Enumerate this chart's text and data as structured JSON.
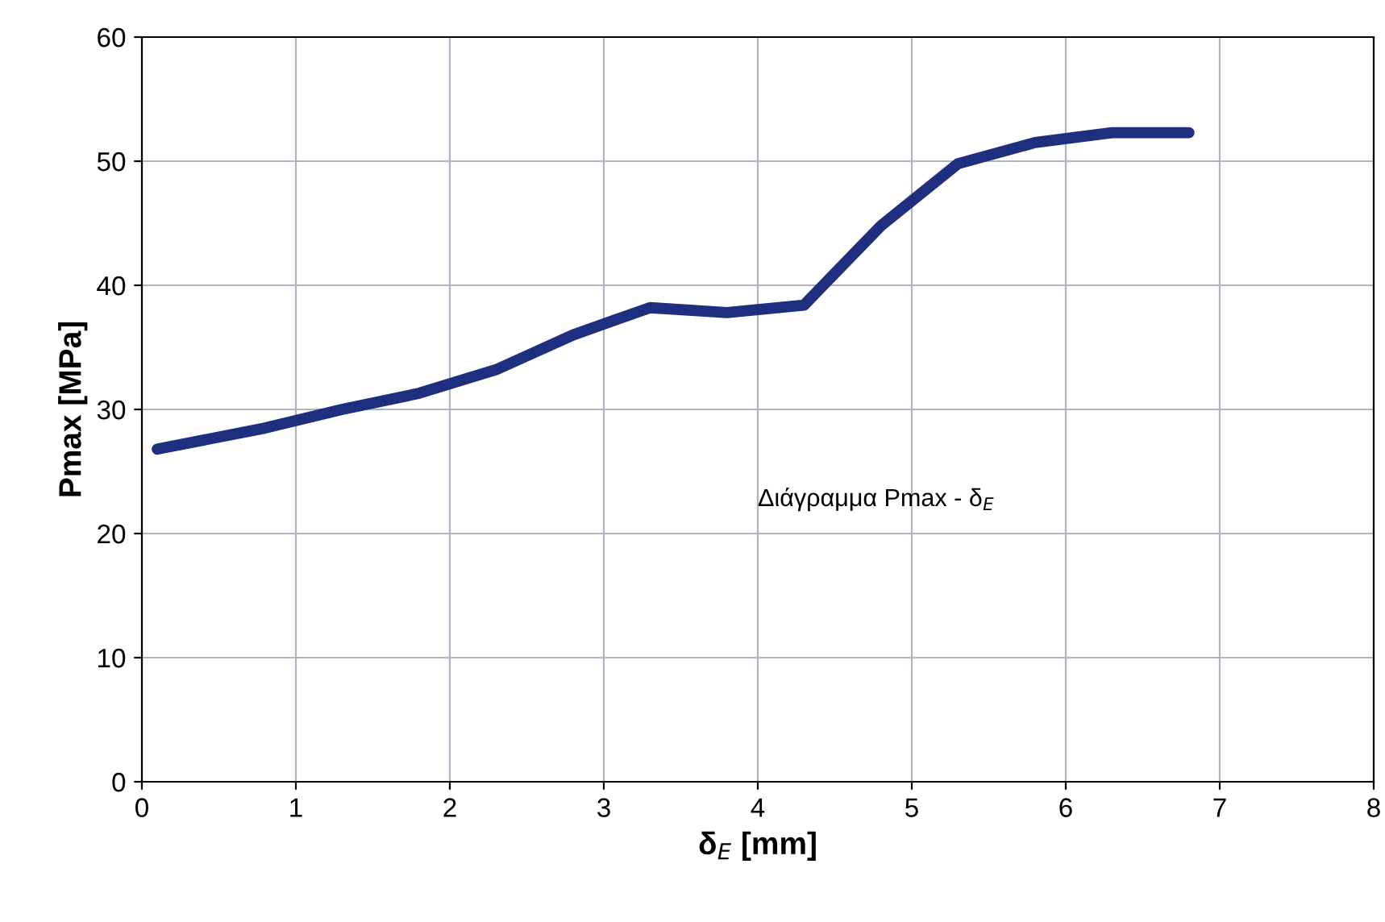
{
  "chart_data": {
    "type": "line",
    "xlabel": "δ$_{E}$ [mm]",
    "ylabel": "Pmax [MPa]",
    "annotations": [
      "Διάγραμμα Pmax - δ$_{E}$"
    ],
    "x": [
      0.1,
      0.8,
      1.3,
      1.8,
      2.3,
      2.8,
      3.3,
      3.8,
      4.3,
      4.8,
      5.3,
      5.8,
      6.3,
      6.8
    ],
    "series": [
      {
        "color": "#1f2f80",
        "values": [
          26.8,
          28.5,
          30,
          31.3,
          33.2,
          36,
          38.2,
          37.8,
          38.4,
          44.8,
          49.8,
          51.5,
          52.3,
          52.3
        ]
      }
    ],
    "xlim": [
      0,
      8
    ],
    "xticks": [
      0,
      1,
      2,
      3,
      4,
      5,
      6,
      7,
      8
    ],
    "ylim": [
      0,
      60
    ],
    "yticks": [
      0,
      10,
      20,
      30,
      40,
      50,
      60
    ],
    "grid": true,
    "marker": "none",
    "line_style": "solid"
  }
}
